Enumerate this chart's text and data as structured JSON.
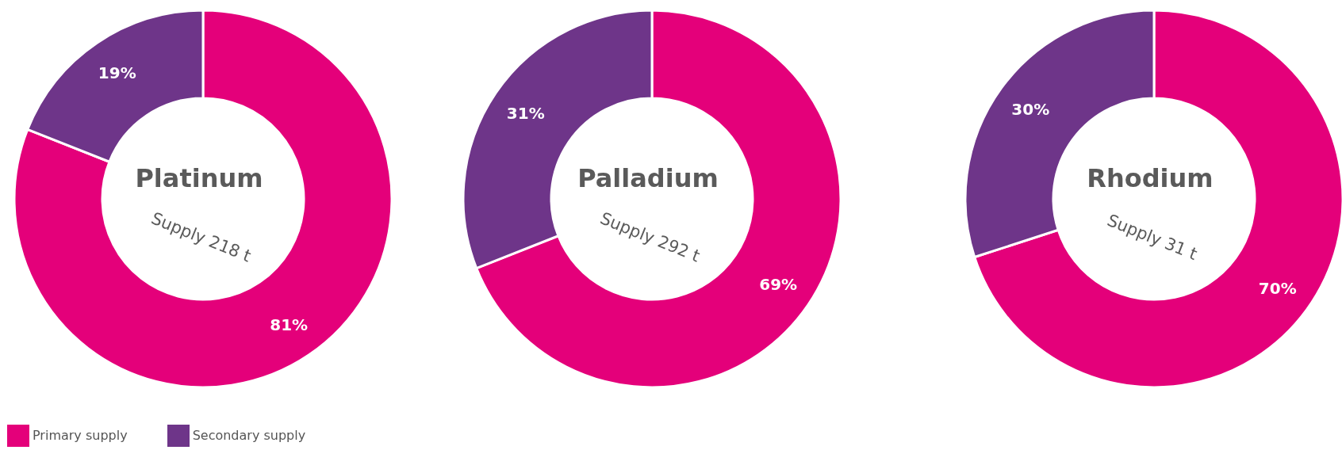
{
  "chart_data": [
    {
      "type": "donut",
      "title": "Platinum",
      "annotations": [
        "Supply 218 t"
      ],
      "categories": [
        "Primary supply",
        "Secondary supply"
      ],
      "values": [
        81,
        19
      ],
      "value_labels": [
        "81%",
        "19%"
      ],
      "colors": [
        "#e4007a",
        "#6e3589"
      ],
      "legend": "bottom left"
    },
    {
      "type": "donut",
      "title": "Palladium",
      "annotations": [
        "Supply 292 t"
      ],
      "categories": [
        null,
        null
      ],
      "values": [
        69,
        31
      ],
      "value_labels": [
        "69%",
        "31%"
      ],
      "colors": [
        "#e4007a",
        "#6e3589"
      ]
    },
    {
      "type": "donut",
      "title": "Rhodium",
      "annotations": [
        "Supply 31 t"
      ],
      "categories": [
        null,
        null
      ],
      "values": [
        70,
        30
      ],
      "value_labels": [
        "70%",
        "30%"
      ],
      "colors": [
        "#e4007a",
        "#6e3589"
      ]
    }
  ]
}
